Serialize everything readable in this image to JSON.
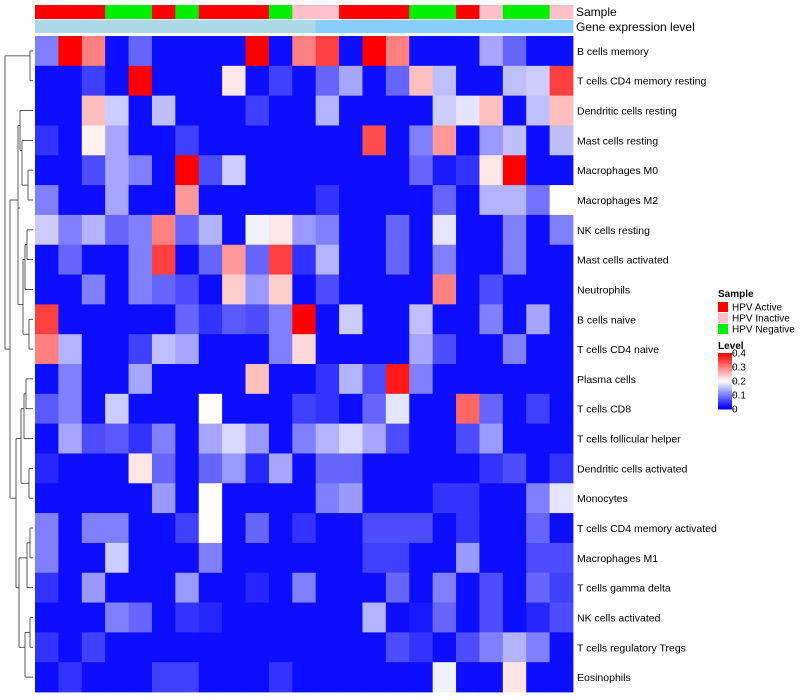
{
  "chart_data": {
    "type": "heatmap",
    "rows": [
      "B cells memory",
      "T cells CD4 memory resting",
      "Dendritic cells resting",
      "Mast cells resting",
      "Macrophages M0",
      "Macrophages M2",
      "NK cells resting",
      "Mast cells activated",
      "Neutrophils",
      "B cells naive",
      "T cells CD4 naive",
      "Plasma cells",
      "T cells CD8",
      "T cells follicular helper",
      "Dendritic cells activated",
      "Monocytes",
      "T cells CD4 memory activated",
      "Macrophages M1",
      "T cells gamma delta",
      "NK cells activated",
      "T cells regulatory  Tregs",
      "Eosinophils"
    ],
    "sample_groups": [
      "HPV Active",
      "HPV Active",
      "HPV Active",
      "HPV Negative",
      "HPV Negative",
      "HPV Active",
      "HPV Negative",
      "HPV Active",
      "HPV Active",
      "HPV Active",
      "HPV Negative",
      "HPV Inactive",
      "HPV Inactive",
      "HPV Active",
      "HPV Active",
      "HPV Active",
      "HPV Negative",
      "HPV Negative",
      "HPV Active",
      "HPV Inactive",
      "HPV Negative",
      "HPV Negative",
      "HPV Inactive"
    ],
    "values": [
      [
        0.1,
        0.4,
        0.3,
        0.01,
        0.08,
        0.01,
        0.01,
        0.01,
        0.01,
        0.4,
        0.01,
        0.3,
        0.35,
        0.01,
        0.4,
        0.3,
        0.01,
        0.01,
        0.01,
        0.13,
        0.08,
        0.01,
        0.01
      ],
      [
        0.01,
        0.01,
        0.05,
        0.01,
        0.4,
        0.01,
        0.01,
        0.01,
        0.22,
        0.01,
        0.05,
        0.01,
        0.08,
        0.13,
        0.01,
        0.08,
        0.25,
        0.15,
        0.01,
        0.01,
        0.15,
        0.16,
        0.35
      ],
      [
        0.01,
        0.01,
        0.25,
        0.16,
        0.01,
        0.15,
        0.01,
        0.01,
        0.01,
        0.05,
        0.01,
        0.01,
        0.14,
        0.01,
        0.01,
        0.01,
        0.01,
        0.16,
        0.18,
        0.25,
        0.01,
        0.15,
        0.25
      ],
      [
        0.04,
        0.01,
        0.21,
        0.13,
        0.01,
        0.01,
        0.05,
        0.01,
        0.01,
        0.01,
        0.01,
        0.01,
        0.01,
        0.01,
        0.34,
        0.01,
        0.1,
        0.28,
        0.01,
        0.12,
        0.15,
        0.01,
        0.15
      ],
      [
        0.01,
        0.01,
        0.06,
        0.13,
        0.1,
        0.01,
        0.4,
        0.06,
        0.16,
        0.01,
        0.01,
        0.01,
        0.01,
        0.01,
        0.01,
        0.01,
        0.08,
        0.02,
        0.04,
        0.22,
        0.4,
        0.01,
        0.01
      ],
      [
        0.1,
        0.01,
        0.01,
        0.13,
        0.01,
        0.01,
        0.28,
        0.01,
        0.01,
        0.01,
        0.01,
        0.01,
        0.04,
        0.01,
        0.01,
        0.01,
        0.01,
        0.08,
        0.01,
        0.14,
        0.14,
        0.09,
        0.2
      ],
      [
        0.16,
        0.1,
        0.14,
        0.08,
        0.1,
        0.3,
        0.08,
        0.14,
        0.01,
        0.19,
        0.22,
        0.12,
        0.1,
        0.01,
        0.01,
        0.08,
        0.01,
        0.18,
        0.01,
        0.01,
        0.1,
        0.01,
        0.1
      ],
      [
        0.01,
        0.08,
        0.01,
        0.01,
        0.1,
        0.35,
        0.01,
        0.08,
        0.28,
        0.08,
        0.35,
        0.04,
        0.14,
        0.01,
        0.01,
        0.08,
        0.01,
        0.1,
        0.01,
        0.01,
        0.1,
        0.01,
        0.01
      ],
      [
        0.01,
        0.01,
        0.1,
        0.01,
        0.1,
        0.08,
        0.06,
        0.01,
        0.24,
        0.12,
        0.24,
        0.01,
        0.06,
        0.01,
        0.01,
        0.01,
        0.01,
        0.3,
        0.01,
        0.06,
        0.01,
        0.01,
        0.01
      ],
      [
        0.35,
        0.01,
        0.01,
        0.01,
        0.01,
        0.01,
        0.08,
        0.04,
        0.07,
        0.06,
        0.1,
        0.4,
        0.01,
        0.16,
        0.01,
        0.01,
        0.15,
        0.01,
        0.01,
        0.1,
        0.01,
        0.13,
        0.01
      ],
      [
        0.3,
        0.14,
        0.01,
        0.01,
        0.05,
        0.15,
        0.13,
        0.01,
        0.01,
        0.01,
        0.1,
        0.23,
        0.01,
        0.01,
        0.01,
        0.01,
        0.13,
        0.06,
        0.01,
        0.01,
        0.1,
        0.01,
        0.01
      ],
      [
        0.01,
        0.1,
        0.01,
        0.01,
        0.13,
        0.01,
        0.01,
        0.01,
        0.01,
        0.25,
        0.01,
        0.01,
        0.04,
        0.14,
        0.06,
        0.38,
        0.1,
        0.01,
        0.01,
        0.01,
        0.01,
        0.01,
        0.01
      ],
      [
        0.07,
        0.1,
        0.01,
        0.16,
        0.01,
        0.01,
        0.01,
        0.2,
        0.01,
        0.01,
        0.01,
        0.05,
        0.04,
        0.01,
        0.08,
        0.18,
        0.01,
        0.01,
        0.32,
        0.08,
        0.01,
        0.05,
        0.01
      ],
      [
        0.01,
        0.13,
        0.06,
        0.07,
        0.04,
        0.1,
        0.01,
        0.13,
        0.17,
        0.12,
        0.01,
        0.1,
        0.14,
        0.17,
        0.13,
        0.06,
        0.01,
        0.01,
        0.06,
        0.12,
        0.01,
        0.01,
        0.01
      ],
      [
        0.03,
        0.01,
        0.01,
        0.01,
        0.22,
        0.08,
        0.01,
        0.08,
        0.12,
        0.03,
        0.13,
        0.01,
        0.08,
        0.08,
        0.01,
        0.01,
        0.01,
        0.01,
        0.01,
        0.04,
        0.06,
        0.01,
        0.04
      ],
      [
        0.01,
        0.01,
        0.01,
        0.01,
        0.01,
        0.12,
        0.01,
        0.2,
        0.01,
        0.01,
        0.01,
        0.01,
        0.1,
        0.12,
        0.01,
        0.01,
        0.01,
        0.04,
        0.04,
        0.01,
        0.01,
        0.1,
        0.18
      ],
      [
        0.1,
        0.01,
        0.1,
        0.1,
        0.01,
        0.01,
        0.05,
        0.2,
        0.01,
        0.08,
        0.01,
        0.04,
        0.01,
        0.01,
        0.06,
        0.06,
        0.06,
        0.01,
        0.04,
        0.01,
        0.01,
        0.08,
        0.01
      ],
      [
        0.1,
        0.01,
        0.01,
        0.16,
        0.01,
        0.01,
        0.01,
        0.1,
        0.01,
        0.01,
        0.01,
        0.01,
        0.01,
        0.01,
        0.05,
        0.05,
        0.01,
        0.01,
        0.12,
        0.01,
        0.01,
        0.06,
        0.06
      ],
      [
        0.04,
        0.01,
        0.12,
        0.01,
        0.01,
        0.01,
        0.12,
        0.01,
        0.01,
        0.03,
        0.01,
        0.1,
        0.01,
        0.01,
        0.01,
        0.08,
        0.01,
        0.1,
        0.01,
        0.06,
        0.01,
        0.08,
        0.05
      ],
      [
        0.01,
        0.01,
        0.01,
        0.1,
        0.08,
        0.01,
        0.04,
        0.03,
        0.01,
        0.01,
        0.01,
        0.01,
        0.01,
        0.01,
        0.14,
        0.01,
        0.02,
        0.08,
        0.01,
        0.06,
        0.01,
        0.03,
        0.06
      ],
      [
        0.04,
        0.01,
        0.05,
        0.01,
        0.01,
        0.01,
        0.01,
        0.01,
        0.01,
        0.01,
        0.01,
        0.01,
        0.01,
        0.01,
        0.01,
        0.06,
        0.04,
        0.01,
        0.06,
        0.1,
        0.14,
        0.1,
        0.01
      ],
      [
        0.01,
        0.04,
        0.01,
        0.01,
        0.01,
        0.05,
        0.05,
        0.01,
        0.01,
        0.01,
        0.04,
        0.01,
        0.01,
        0.01,
        0.01,
        0.01,
        0.01,
        0.19,
        0.01,
        0.01,
        0.22,
        0.01,
        0.01
      ]
    ],
    "value_range": [
      0,
      0.4
    ],
    "color_scale": {
      "low": "#0000ff",
      "mid": "#ffffff",
      "high": "#ff0000"
    },
    "annotation_tracks": [
      "Sample",
      "Gene expression level"
    ],
    "legend": {
      "sample_title": "Sample",
      "sample_entries": [
        {
          "label": "HPV Active",
          "color": "#ff0000"
        },
        {
          "label": "HPV Inactive",
          "color": "#ffc0cb"
        },
        {
          "label": "HPV Negative",
          "color": "#00ee00"
        }
      ],
      "level_title": "Level",
      "level_ticks": [
        "0.4",
        "0.3",
        "0.2",
        "0.1",
        "0"
      ],
      "level_tick_values": [
        0.4,
        0.3,
        0.2,
        0.1,
        0
      ]
    },
    "expression_track_colors": [
      "#add8e6",
      "#87cefa"
    ]
  }
}
